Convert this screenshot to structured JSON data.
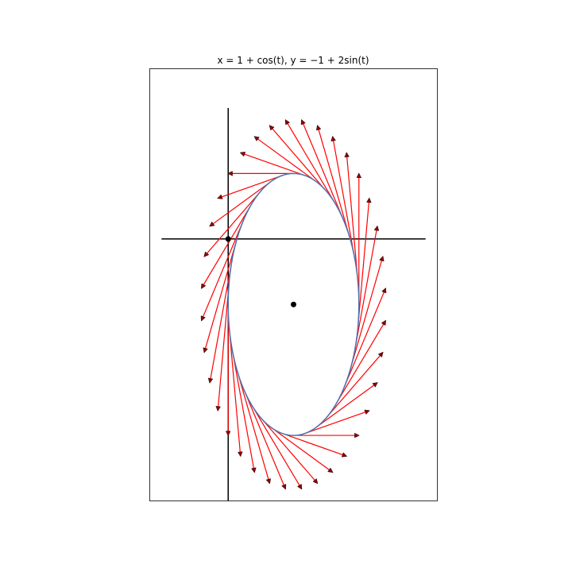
{
  "chart_data": {
    "type": "line",
    "title": "x = 1 + cos(t), y = −1 + 2sin(t)",
    "xlabel": "",
    "ylabel": "",
    "xlim": [
      -1.2,
      3.2
    ],
    "ylim": [
      -4.0,
      2.6
    ],
    "grid": false,
    "legend": "none",
    "curve": {
      "x_center": 1,
      "y_center": -1,
      "x_radius": 1,
      "y_radius": 2,
      "t_range": [
        0,
        6.283185
      ],
      "color": "#4c72b0"
    },
    "axis_lines": {
      "horizontal_y": 0,
      "horizontal_x_range": [
        -1.02,
        3.02
      ],
      "vertical_x": 0,
      "vertical_y_range": [
        -4.0,
        2.0
      ],
      "color": "#000000"
    },
    "points": [
      {
        "x": 0,
        "y": 0
      },
      {
        "x": 1,
        "y": -1
      }
    ],
    "tangent_vectors": {
      "count": 36,
      "scale": 1,
      "color": "#ff0000",
      "head_color": "#8b0000"
    }
  }
}
